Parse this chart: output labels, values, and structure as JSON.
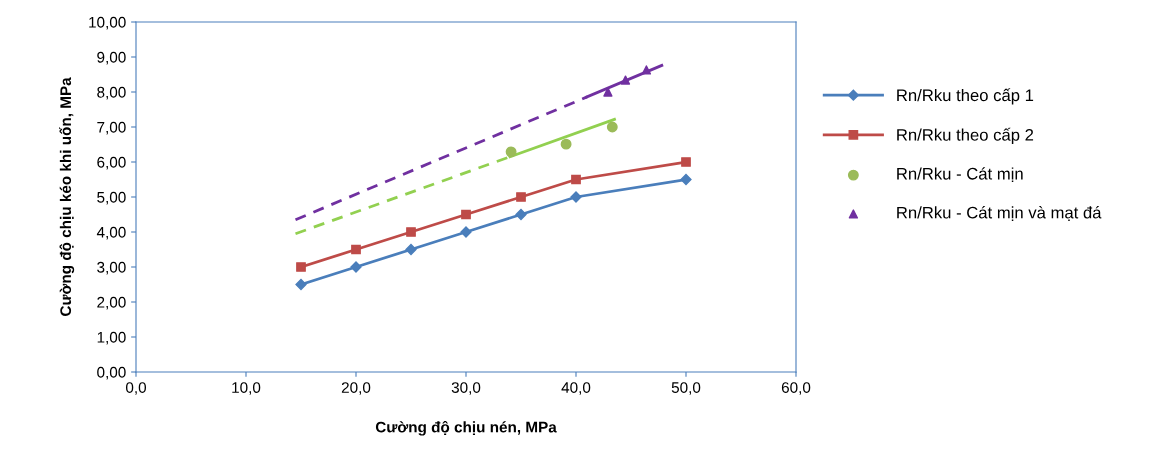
{
  "chart_data": {
    "type": "line",
    "xlabel": "Cường độ chịu nén, MPa",
    "ylabel": "Cường độ chịu kéo khi uốn, MPa",
    "xlim": [
      0,
      60
    ],
    "xticks": [
      {
        "value": 0,
        "label": "0,0"
      },
      {
        "value": 10,
        "label": "10,0"
      },
      {
        "value": 20,
        "label": "20,0"
      },
      {
        "value": 30,
        "label": "30,0"
      },
      {
        "value": 40,
        "label": "40,0"
      },
      {
        "value": 50,
        "label": "50,0"
      },
      {
        "value": 60,
        "label": "60,0"
      }
    ],
    "ylim": [
      0,
      10
    ],
    "yticks": [
      {
        "value": 0,
        "label": "0,00"
      },
      {
        "value": 1,
        "label": "1,00"
      },
      {
        "value": 2,
        "label": "2,00"
      },
      {
        "value": 3,
        "label": "3,00"
      },
      {
        "value": 4,
        "label": "4,00"
      },
      {
        "value": 5,
        "label": "5,00"
      },
      {
        "value": 6,
        "label": "6,00"
      },
      {
        "value": 7,
        "label": "7,00"
      },
      {
        "value": 8,
        "label": "8,00"
      },
      {
        "value": 9,
        "label": "9,00"
      },
      {
        "value": 10,
        "label": "10,00"
      }
    ],
    "grid": false,
    "legend": "right",
    "series": [
      {
        "name": "Rn/Rku theo cấp 1",
        "color": "#4a7ebb",
        "marker": "diamond",
        "line_style": "solid",
        "x": [
          15,
          20,
          25,
          30,
          35,
          40,
          50
        ],
        "values": [
          2.5,
          3.0,
          3.5,
          4.0,
          4.5,
          5.0,
          5.5
        ]
      },
      {
        "name": "Rn/Rku theo cấp 2",
        "color": "#be4b48",
        "marker": "square",
        "line_style": "solid",
        "x": [
          15,
          20,
          25,
          30,
          35,
          40,
          50
        ],
        "values": [
          3.0,
          3.5,
          4.0,
          4.5,
          5.0,
          5.5,
          6.0
        ]
      },
      {
        "name": "Rn/Rku - Cát mịn",
        "type": "scatter",
        "color": "#9bbb59",
        "marker": "circle",
        "x": [
          34.1,
          39.1,
          43.3
        ],
        "values": [
          6.29,
          6.51,
          7.0
        ]
      },
      {
        "name": "Rn/Rku - Cát mịn và mạt đá",
        "type": "scatter",
        "color": "#7030a0",
        "marker": "triangle",
        "x": [
          42.9,
          44.5,
          46.4
        ],
        "values": [
          8.0,
          8.34,
          8.63
        ]
      },
      {
        "color": "#92d050",
        "marker": "none",
        "line_style": "dashed",
        "x": [
          14.5,
          34
        ],
        "values": [
          3.95,
          6.15
        ]
      },
      {
        "color": "#92d050",
        "marker": "none",
        "line_style": "solid",
        "x": [
          34,
          43.5
        ],
        "values": [
          6.15,
          7.22
        ]
      },
      {
        "color": "#7030a0",
        "marker": "none",
        "line_style": "dashed",
        "x": [
          14.5,
          41
        ],
        "values": [
          4.35,
          7.86
        ]
      },
      {
        "color": "#7030a0",
        "marker": "none",
        "line_style": "solid",
        "x": [
          41,
          47.8
        ],
        "values": [
          7.86,
          8.76
        ]
      }
    ]
  }
}
